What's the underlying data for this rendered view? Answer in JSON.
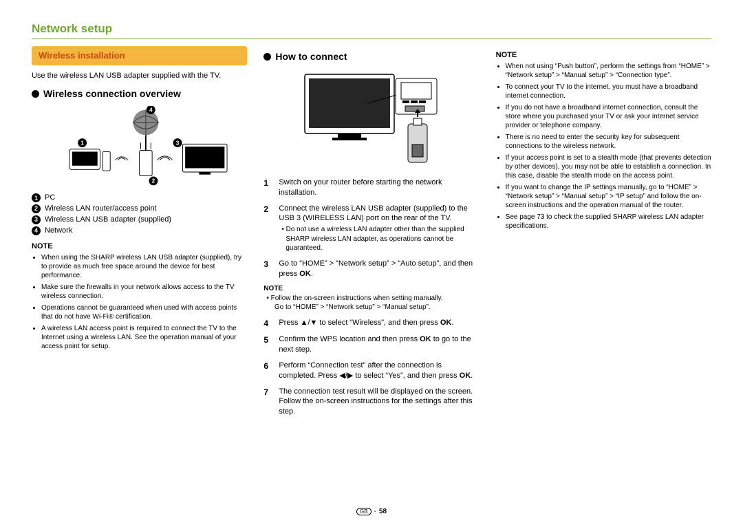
{
  "page_title": "Network setup",
  "footer": {
    "region": "GB",
    "page_num": "58"
  },
  "col1": {
    "banner": "Wireless installation",
    "intro": "Use the wireless LAN USB adapter supplied with the TV.",
    "overview_heading": "Wireless connection overview",
    "legend": [
      {
        "n": "1",
        "label": "PC"
      },
      {
        "n": "2",
        "label": "Wireless LAN router/access point"
      },
      {
        "n": "3",
        "label": "Wireless LAN USB adapter (supplied)"
      },
      {
        "n": "4",
        "label": "Network"
      }
    ],
    "note_heading": "NOTE",
    "notes": [
      "When using the SHARP wireless LAN USB adapter (supplied), try to provide as much free space around the device for best performance.",
      "Make sure the firewalls in your network allows access to the TV wireless connection.",
      "Operations cannot be guaranteed when used with access points that do not have Wi-Fi® certification.",
      "A wireless LAN access point is required to connect the TV to the Internet using a wireless LAN. See the operation manual of your access point for setup."
    ]
  },
  "col2": {
    "connect_heading": "How to connect",
    "steps": [
      {
        "n": "1",
        "text": "Switch on your router before starting the network installation."
      },
      {
        "n": "2",
        "text": "Connect the wireless LAN USB adapter (supplied) to the USB 3 (WIRELESS LAN) port on the rear of the TV.",
        "sub": "Do not use a wireless LAN adapter other than the supplied SHARP wireless LAN adapter, as operations cannot be guaranteed."
      },
      {
        "n": "3",
        "text_html": "Go to “HOME” > “Network setup” > “Auto setup”, and then press <b>OK</b>."
      },
      {
        "n": "4",
        "text_html": "Press <span class=\"arrow-sym\">▲/▼</span> to select “Wireless”, and then press <b>OK</b>."
      },
      {
        "n": "5",
        "text_html": "Confirm the WPS location and then press <b>OK</b> to go to the next step."
      },
      {
        "n": "6",
        "text_html": "Perform “Connection test” after the connection is completed. Press <span class=\"arrow-sym\">◀/▶</span> to select “Yes”, and then press <b>OK</b>."
      },
      {
        "n": "7",
        "text": "The connection test result will be displayed on the screen. Follow the on-screen instructions for the settings after this step."
      }
    ],
    "inline_note_heading": "NOTE",
    "inline_note": "Follow the on-screen instructions when setting manually.\nGo to “HOME” > “Network setup” > “Manual setup”."
  },
  "col3": {
    "note_heading": "NOTE",
    "notes": [
      "When not using “Push button”, perform the settings from “HOME” > “Network setup” > “Manual setup” > “Connection type”.",
      "To connect your TV to the internet, you must have a broadband  internet connection.",
      "If you do not have a broadband internet connection, consult the store where you purchased your TV or ask your internet service provider or telephone company.",
      "There is no need to enter the security key for subsequent connections to the wireless network.",
      "If your access point is set to a stealth mode (that prevents detection by other devices), you may not be able to establish a connection. In this case, disable the stealth mode on the access point.",
      "If you want to change the IP settings manually, go to “HOME” > “Network setup” > “Manual setup” > “IP setup” and follow the on-screen instructions and the operation manual of the router.",
      "See page 73 to check the supplied SHARP wireless LAN adapter specifications."
    ]
  }
}
